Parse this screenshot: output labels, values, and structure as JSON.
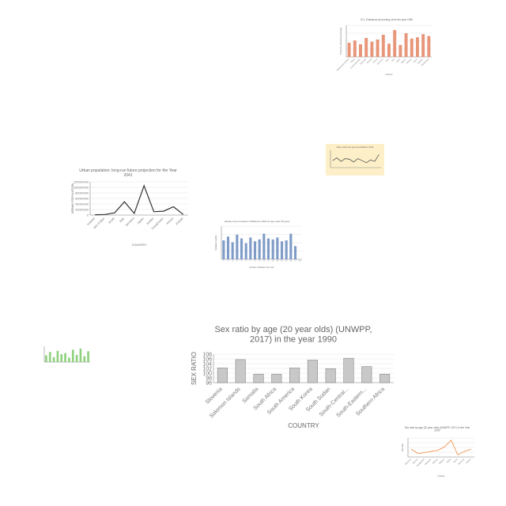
{
  "chart_data": [
    {
      "id": "co2",
      "type": "bar",
      "title": "CO₂ Emissions by burning oil for the year 1950",
      "xlabel": "Country",
      "ylabel": "Total CO₂ Emissions (tonnes)",
      "categories": [
        "Netherlands Antilles",
        "Brazil",
        "Czechoslovakia",
        "Denmark",
        "Finland",
        "France",
        "Germany",
        "India",
        "Italy",
        "Japan",
        "Mexico",
        "Norway",
        "Spain",
        "Sweden",
        "Switzerland"
      ],
      "values": [
        45,
        52,
        40,
        60,
        48,
        55,
        70,
        42,
        85,
        38,
        75,
        58,
        62,
        72,
        66
      ],
      "ylim": [
        0,
        100
      ],
      "color": "#e8967a"
    },
    {
      "id": "yellow",
      "type": "line",
      "title": "Mean search rate age-sexes/dollars in 2016",
      "xlabel": "",
      "ylabel": "",
      "categories": [
        "",
        "",
        "",
        "",
        "",
        "",
        "",
        "",
        "",
        "",
        "",
        ""
      ],
      "values": [
        10,
        14,
        9,
        13,
        12,
        8,
        13,
        10,
        7,
        11,
        9,
        19
      ],
      "ylim": [
        0,
        25
      ],
      "background": "#fdf0c8",
      "color": "#555555"
    },
    {
      "id": "urban",
      "type": "line",
      "title": "Urban population: long-run future projection for the Year 2041",
      "xlabel": "COUNTRY",
      "ylabel": "URBAN POPULATION",
      "categories": [
        "Iceland",
        "Isle of Man",
        "Israel",
        "Italy",
        "Jamaica",
        "Japan",
        "Jordan",
        "Kazakhstan",
        "Kenya",
        "Kiribati"
      ],
      "values": [
        1000000,
        2000000,
        8000000,
        48000000,
        6000000,
        106000000,
        12000000,
        14000000,
        30000000,
        2000000
      ],
      "yticks": [
        "0",
        "20000000",
        "40000000",
        "60000000",
        "80000000",
        "100000000",
        "120000000"
      ],
      "ylim": [
        0,
        120000000
      ],
      "color": "#333333"
    },
    {
      "id": "weekly",
      "type": "bar",
      "title": "Weekly count of deaths in Wallonia in 2020 for age under 65 years",
      "xlabel": "Number of Weeks in the Year",
      "ylabel": "Number of deaths",
      "categories": [
        "1",
        "2",
        "3",
        "4",
        "5",
        "6",
        "7",
        "8",
        "9",
        "10",
        "11",
        "12",
        "13",
        "14",
        "15",
        "16",
        "17",
        "18"
      ],
      "values": [
        20,
        24,
        18,
        26,
        22,
        17,
        23,
        19,
        21,
        27,
        22,
        21,
        23,
        19,
        20,
        27,
        14,
        0
      ],
      "ylim": [
        0,
        35
      ],
      "color": "#7f9cc8"
    },
    {
      "id": "green",
      "type": "bar",
      "title": "",
      "xlabel": "",
      "ylabel": "",
      "categories": [
        "",
        "",
        "",
        "",
        "",
        "",
        "",
        "",
        "",
        "",
        "",
        ""
      ],
      "values": [
        30,
        45,
        22,
        50,
        35,
        40,
        20,
        55,
        32,
        60,
        26,
        48
      ],
      "ylim": [
        0,
        70
      ],
      "color": "#8fd07e"
    },
    {
      "id": "sexratio1990",
      "type": "bar",
      "title": "Sex ratio by age (20 year olds) (UNWPP, 2017) in the year 1990",
      "xlabel": "COUNTRY",
      "ylabel": "SEX RATIO",
      "categories": [
        "Slovenia",
        "Solomon Islands",
        "Somalia",
        "South Africa",
        "South America",
        "South Korea",
        "South Sudan",
        "South-Central...",
        "South-Eastern...",
        "Southern Africa"
      ],
      "values": [
        102.2,
        105.7,
        99.6,
        99.6,
        102.2,
        105.5,
        101.9,
        106.3,
        102.8,
        99.6
      ],
      "yticks": [
        "96",
        "98",
        "100",
        "102",
        "104",
        "106",
        "108"
      ],
      "ylim": [
        96,
        108
      ],
      "color": "#c8c8c8"
    },
    {
      "id": "sexratio2000",
      "type": "line",
      "title": "Sex ratio by age (20 year olds) (UNWPP, 2017) in the Year 2000",
      "xlabel": "Country",
      "ylabel": "Sex ratio",
      "categories": [
        "Bahamas",
        "Bahrain",
        "Bangladesh",
        "Barbados",
        "Belarus",
        "Belgium",
        "Belize",
        "Benin",
        "Bermuda",
        "Bhutan"
      ],
      "values": [
        102,
        98,
        99,
        100,
        101,
        104,
        110,
        97,
        100,
        102
      ],
      "ylim": [
        95,
        112
      ],
      "color": "#ef8a3c"
    }
  ]
}
